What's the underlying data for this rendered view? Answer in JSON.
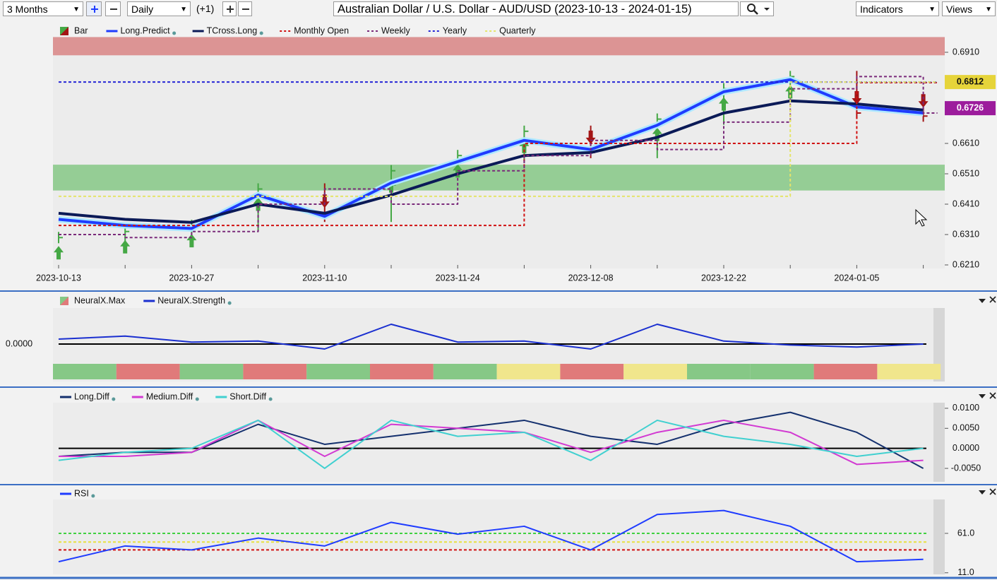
{
  "toolbar": {
    "period": "3 Months",
    "interval": "Daily",
    "offset": "(+1)",
    "title": "Australian Dollar / U.S. Dollar - AUD/USD (2023-10-13 - 2024-01-15)",
    "indicators": "Indicators",
    "views": "Views"
  },
  "chart_data": [
    {
      "type": "line",
      "categories": [
        "2023-10-13",
        null,
        "2023-10-27",
        null,
        "2023-11-10",
        null,
        "2023-11-24",
        null,
        "2023-12-08",
        null,
        "2023-12-22",
        null,
        "2024-01-05",
        null
      ],
      "ylim": [
        0.62,
        0.696
      ],
      "yticks": [
        {
          "value": 0.691,
          "label": "0.6910"
        },
        {
          "value": 0.661,
          "label": "0.6610"
        },
        {
          "value": 0.651,
          "label": "0.6510"
        },
        {
          "value": 0.641,
          "label": "0.6410"
        },
        {
          "value": 0.631,
          "label": "0.6310"
        },
        {
          "value": 0.621,
          "label": "0.6210"
        }
      ],
      "zones": [
        {
          "range": [
            0.69,
            0.696
          ],
          "color": "#d98585"
        },
        {
          "range": [
            0.6455,
            0.654
          ],
          "color": "#86c886"
        }
      ],
      "price_labels": [
        {
          "value": 0.6812,
          "label": "0.6812",
          "color": "#e6d43a"
        },
        {
          "value": 0.6726,
          "label": "0.6726",
          "color": "#9c1c9c"
        }
      ],
      "series": [
        {
          "name": "Bar",
          "style": "bar",
          "colors": [
            "#45a845",
            "#a31515"
          ],
          "values": [
            0.63,
            0.632,
            0.634,
            0.646,
            0.637,
            0.652,
            0.657,
            0.665,
            0.658,
            0.669,
            0.679,
            0.683,
            0.671,
            0.67
          ]
        },
        {
          "name": "Long.Predict",
          "style": "line",
          "color": "#1f3cff",
          "width": 4,
          "values": [
            0.636,
            0.634,
            0.633,
            0.644,
            0.637,
            0.648,
            0.655,
            0.662,
            0.659,
            0.667,
            0.678,
            0.682,
            0.673,
            0.671
          ]
        },
        {
          "name": "TCross.Long",
          "style": "line",
          "color": "#0b1a57",
          "width": 4,
          "values": [
            0.638,
            0.636,
            0.635,
            0.641,
            0.638,
            0.644,
            0.651,
            0.657,
            0.658,
            0.663,
            0.671,
            0.675,
            0.674,
            0.672
          ]
        },
        {
          "name": "Monthly Open",
          "style": "step",
          "color": "#d01010",
          "dash": true,
          "values": [
            0.634,
            0.634,
            0.634,
            0.634,
            0.634,
            0.634,
            0.634,
            0.661,
            0.661,
            0.661,
            0.661,
            0.661,
            0.681,
            0.681
          ]
        },
        {
          "name": "Weekly",
          "style": "step",
          "color": "#7a2a7a",
          "dash": true,
          "values": [
            0.631,
            0.63,
            0.632,
            0.641,
            0.646,
            0.641,
            0.652,
            0.657,
            0.662,
            0.659,
            0.668,
            0.679,
            0.683,
            0.671
          ]
        },
        {
          "name": "Yearly",
          "style": "step",
          "color": "#2626d6",
          "dash": true,
          "values": [
            0.6812,
            0.6812,
            0.6812,
            0.6812,
            0.6812,
            0.6812,
            0.6812,
            0.6812,
            0.6812,
            0.6812,
            0.6812,
            0.6812,
            0.6812,
            0.6812
          ]
        },
        {
          "name": "Quarterly",
          "style": "step",
          "color": "#e4e46a",
          "dash": true,
          "values": [
            0.6436,
            0.6436,
            0.6436,
            0.6436,
            0.6436,
            0.6436,
            0.6436,
            0.6436,
            0.6436,
            0.6436,
            0.6436,
            0.6812,
            0.6812,
            0.6812
          ]
        }
      ]
    },
    {
      "type": "line",
      "ylim": [
        -0.003,
        0.003
      ],
      "yticks": [
        {
          "value": 0,
          "label": "0.0000"
        }
      ],
      "series": [
        {
          "name": "NeuralX.Max",
          "style": "strip",
          "colors": [
            "#86c886",
            "#e07a7a",
            "#86c886",
            "#e07a7a",
            "#86c886",
            "#e07a7a",
            "#86c886",
            "#f0e68c",
            "#e07a7a",
            "#f0e68c",
            "#86c886",
            "#86c886",
            "#e07a7a",
            "#f0e68c"
          ]
        },
        {
          "name": "NeuralX.Strength",
          "style": "line",
          "color": "#1a2fd0",
          "width": 2,
          "values": [
            0.0005,
            0.0008,
            0.0002,
            0.0003,
            -0.0005,
            0.002,
            0.0002,
            0.0003,
            -0.0005,
            0.002,
            0.0003,
            -0.0001,
            -0.0003,
            0.0
          ]
        }
      ]
    },
    {
      "type": "line",
      "ylim": [
        -0.008,
        0.0114
      ],
      "yticks": [
        {
          "value": 0.01,
          "label": "0.0100"
        },
        {
          "value": 0.005,
          "label": "0.0050"
        },
        {
          "value": 0,
          "label": "0.0000"
        },
        {
          "value": -0.005,
          "label": "-0.0050"
        }
      ],
      "series": [
        {
          "name": "Long.Diff",
          "style": "line",
          "color": "#14306e",
          "width": 2,
          "values": [
            -0.002,
            -0.001,
            -0.001,
            0.006,
            0.001,
            0.003,
            0.005,
            0.007,
            0.003,
            0.001,
            0.006,
            0.009,
            0.004,
            -0.005
          ]
        },
        {
          "name": "Medium.Diff",
          "style": "line",
          "color": "#d23ad2",
          "width": 2,
          "values": [
            -0.002,
            -0.002,
            -0.001,
            0.007,
            -0.002,
            0.006,
            0.005,
            0.004,
            -0.001,
            0.004,
            0.007,
            0.004,
            -0.004,
            -0.003
          ]
        },
        {
          "name": "Short.Diff",
          "style": "line",
          "color": "#40d0d0",
          "width": 2,
          "values": [
            -0.003,
            -0.001,
            0.0,
            0.007,
            -0.005,
            0.007,
            0.003,
            0.004,
            -0.003,
            0.007,
            0.003,
            0.001,
            -0.002,
            0.0
          ]
        }
      ]
    },
    {
      "type": "line",
      "ylim": [
        9,
        104
      ],
      "yticks": [
        {
          "value": 61,
          "label": "61.0"
        },
        {
          "value": 11,
          "label": "11.0"
        }
      ],
      "levels": [
        {
          "value": 61,
          "color": "#40d040"
        },
        {
          "value": 50,
          "color": "#e8e040"
        },
        {
          "value": 40,
          "color": "#d01010"
        }
      ],
      "series": [
        {
          "name": "RSI",
          "style": "line",
          "color": "#1f3cff",
          "width": 2,
          "values": [
            25,
            45,
            40,
            55,
            45,
            75,
            60,
            70,
            40,
            85,
            90,
            70,
            25,
            28
          ]
        }
      ]
    }
  ]
}
